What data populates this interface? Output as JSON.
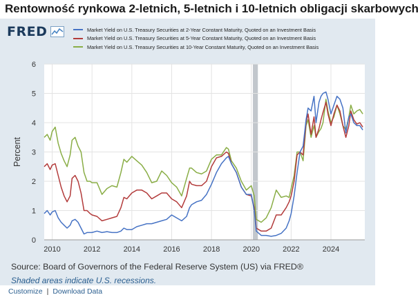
{
  "page_title": "Rentowność rynkowa 2-letnich, 5-letnich i 10-letnich obligacji skarbowych",
  "logo_text": "FRED",
  "source_text": "Source: Board of Governors of the Federal Reserve System (US) via FRED®",
  "recession_note": "Shaded areas indicate U.S. recessions.",
  "footer": {
    "customize": "Customize",
    "separator": "|",
    "download": "Download Data"
  },
  "colors": {
    "panel_bg": "#e1e9f0",
    "series_2y": "#4572c4",
    "series_5y": "#b23a3a",
    "series_10y": "#89ad45",
    "recession": "#c2c7cc"
  },
  "chart_data": {
    "type": "line",
    "ylabel": "Percent",
    "xlim": [
      2009.6,
      2025.7
    ],
    "ylim": [
      0,
      6
    ],
    "yticks": [
      0,
      1,
      2,
      3,
      4,
      5,
      6
    ],
    "xticks": [
      2010,
      2012,
      2014,
      2016,
      2018,
      2020,
      2022,
      2024
    ],
    "grid": true,
    "legend_position": "top",
    "recessions": [
      [
        2020.08,
        2020.33
      ]
    ],
    "x": [
      2009.6,
      2009.75,
      2009.9,
      2010.0,
      2010.15,
      2010.3,
      2010.45,
      2010.6,
      2010.75,
      2010.9,
      2011.0,
      2011.15,
      2011.3,
      2011.45,
      2011.6,
      2011.75,
      2011.9,
      2012.0,
      2012.25,
      2012.5,
      2012.75,
      2013.0,
      2013.25,
      2013.45,
      2013.6,
      2013.75,
      2014.0,
      2014.25,
      2014.5,
      2014.75,
      2015.0,
      2015.25,
      2015.5,
      2015.75,
      2016.0,
      2016.25,
      2016.5,
      2016.75,
      2016.9,
      2017.0,
      2017.25,
      2017.5,
      2017.75,
      2018.0,
      2018.25,
      2018.5,
      2018.75,
      2018.85,
      2019.0,
      2019.25,
      2019.5,
      2019.75,
      2020.0,
      2020.15,
      2020.25,
      2020.5,
      2020.75,
      2021.0,
      2021.25,
      2021.5,
      2021.75,
      2021.9,
      2022.0,
      2022.15,
      2022.3,
      2022.45,
      2022.6,
      2022.75,
      2022.85,
      2023.0,
      2023.15,
      2023.25,
      2023.4,
      2023.5,
      2023.6,
      2023.75,
      2023.85,
      2024.0,
      2024.15,
      2024.3,
      2024.45,
      2024.6,
      2024.75,
      2024.9,
      2025.0,
      2025.15,
      2025.3,
      2025.45,
      2025.6
    ],
    "series": [
      {
        "name": "Market Yield on U.S. Treasury Securities at 2-Year Constant Maturity, Quoted on an Investment Basis",
        "values": [
          0.9,
          1.0,
          0.85,
          0.95,
          1.0,
          0.75,
          0.6,
          0.5,
          0.4,
          0.5,
          0.65,
          0.7,
          0.6,
          0.4,
          0.2,
          0.25,
          0.25,
          0.25,
          0.3,
          0.25,
          0.28,
          0.25,
          0.25,
          0.3,
          0.4,
          0.35,
          0.35,
          0.45,
          0.5,
          0.55,
          0.55,
          0.6,
          0.65,
          0.7,
          0.85,
          0.75,
          0.65,
          0.8,
          1.1,
          1.2,
          1.3,
          1.35,
          1.55,
          1.9,
          2.3,
          2.6,
          2.8,
          2.85,
          2.6,
          2.3,
          1.8,
          1.55,
          1.55,
          1.0,
          0.3,
          0.15,
          0.15,
          0.12,
          0.15,
          0.22,
          0.4,
          0.65,
          0.9,
          1.5,
          2.3,
          3.0,
          3.2,
          4.1,
          4.5,
          4.4,
          4.9,
          4.0,
          4.7,
          4.9,
          5.0,
          5.05,
          4.8,
          4.3,
          4.6,
          4.9,
          4.8,
          4.5,
          3.65,
          4.2,
          4.3,
          4.0,
          3.9,
          3.9,
          3.75
        ]
      },
      {
        "name": "Market Yield on U.S. Treasury Securities at 5-Year Constant Maturity, Quoted on an Investment Basis",
        "values": [
          2.5,
          2.6,
          2.4,
          2.55,
          2.6,
          2.2,
          1.8,
          1.5,
          1.3,
          1.5,
          2.1,
          2.2,
          2.0,
          1.6,
          1.0,
          1.0,
          0.9,
          0.85,
          0.8,
          0.65,
          0.7,
          0.75,
          0.8,
          1.1,
          1.45,
          1.4,
          1.6,
          1.7,
          1.7,
          1.6,
          1.4,
          1.5,
          1.6,
          1.6,
          1.4,
          1.3,
          1.1,
          1.5,
          2.0,
          1.9,
          1.85,
          1.85,
          2.0,
          2.5,
          2.8,
          2.85,
          3.0,
          2.95,
          2.6,
          2.3,
          1.8,
          1.55,
          1.5,
          1.1,
          0.4,
          0.3,
          0.3,
          0.4,
          0.85,
          0.85,
          1.1,
          1.3,
          1.5,
          2.0,
          2.9,
          3.0,
          2.9,
          4.0,
          4.3,
          3.6,
          4.2,
          3.5,
          3.8,
          4.1,
          4.35,
          4.7,
          4.3,
          3.9,
          4.3,
          4.6,
          4.4,
          3.9,
          3.5,
          3.9,
          4.4,
          4.1,
          3.95,
          4.0,
          3.85
        ]
      },
      {
        "name": "Market Yield on U.S. Treasury Securities at 10-Year Constant Maturity, Quoted on an Investment Basis",
        "values": [
          3.5,
          3.6,
          3.4,
          3.7,
          3.85,
          3.3,
          2.95,
          2.7,
          2.5,
          2.9,
          3.4,
          3.5,
          3.2,
          3.0,
          2.3,
          2.0,
          2.0,
          1.95,
          1.95,
          1.55,
          1.75,
          1.85,
          1.8,
          2.3,
          2.75,
          2.65,
          2.85,
          2.7,
          2.55,
          2.3,
          1.95,
          2.0,
          2.35,
          2.2,
          1.95,
          1.8,
          1.5,
          2.1,
          2.45,
          2.45,
          2.3,
          2.25,
          2.35,
          2.75,
          2.9,
          2.9,
          3.15,
          3.1,
          2.7,
          2.45,
          2.0,
          1.7,
          1.85,
          1.5,
          0.7,
          0.6,
          0.75,
          1.1,
          1.7,
          1.45,
          1.5,
          1.45,
          1.75,
          2.2,
          3.0,
          3.0,
          2.7,
          3.9,
          4.1,
          3.5,
          3.9,
          3.5,
          3.7,
          3.8,
          4.0,
          4.8,
          4.4,
          4.0,
          4.2,
          4.6,
          4.3,
          3.9,
          3.75,
          4.2,
          4.6,
          4.3,
          4.4,
          4.45,
          4.3
        ]
      }
    ]
  }
}
